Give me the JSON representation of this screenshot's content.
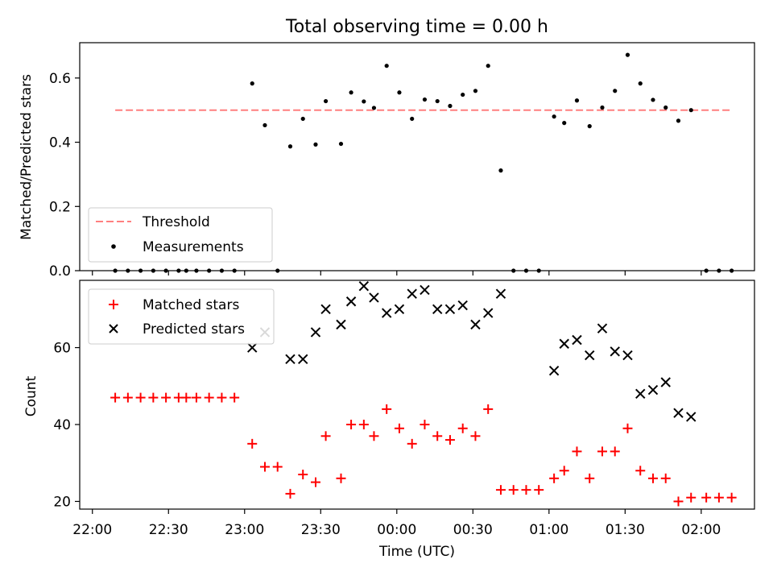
{
  "figure": {
    "title": "Total observing time = 0.00 h",
    "xlabel": "Time (UTC)"
  },
  "chart_data": [
    {
      "type": "scatter",
      "ylabel": "Matched/Predicted stars",
      "ylim": [
        0,
        0.71
      ],
      "yticks": [
        0.0,
        0.2,
        0.4,
        0.6
      ],
      "ytick_labels": [
        "0.0",
        "0.2",
        "0.4",
        "0.6"
      ],
      "threshold": {
        "name": "Threshold",
        "value": 0.5,
        "x_start": "22:09",
        "x_end": "02:12",
        "color": "#ff7f7f"
      },
      "legend_location": "lower-left",
      "series": [
        {
          "name": "Measurements",
          "marker": "dot",
          "color": "#000000",
          "points": [
            [
              "22:09",
              0
            ],
            [
              "22:14",
              0
            ],
            [
              "22:19",
              0
            ],
            [
              "22:24",
              0
            ],
            [
              "22:29",
              0
            ],
            [
              "22:34",
              0
            ],
            [
              "22:37",
              0
            ],
            [
              "22:41",
              0
            ],
            [
              "22:46",
              0
            ],
            [
              "22:51",
              0
            ],
            [
              "22:56",
              0
            ],
            [
              "23:03",
              0.583
            ],
            [
              "23:08",
              0.453
            ],
            [
              "23:13",
              0
            ],
            [
              "23:18",
              0.387
            ],
            [
              "23:23",
              0.473
            ],
            [
              "23:28",
              0.393
            ],
            [
              "23:32",
              0.528
            ],
            [
              "23:38",
              0.395
            ],
            [
              "23:42",
              0.555
            ],
            [
              "23:47",
              0.527
            ],
            [
              "23:51",
              0.507
            ],
            [
              "23:56",
              0.638
            ],
            [
              "00:01",
              0.555
            ],
            [
              "00:06",
              0.473
            ],
            [
              "00:11",
              0.533
            ],
            [
              "00:16",
              0.528
            ],
            [
              "00:21",
              0.513
            ],
            [
              "00:26",
              0.548
            ],
            [
              "00:31",
              0.56
            ],
            [
              "00:36",
              0.638
            ],
            [
              "00:41",
              0.312
            ],
            [
              "00:46",
              0
            ],
            [
              "00:51",
              0
            ],
            [
              "00:56",
              0
            ],
            [
              "01:02",
              0.48
            ],
            [
              "01:06",
              0.46
            ],
            [
              "01:11",
              0.53
            ],
            [
              "01:16",
              0.45
            ],
            [
              "01:21",
              0.508
            ],
            [
              "01:26",
              0.56
            ],
            [
              "01:31",
              0.672
            ],
            [
              "01:36",
              0.583
            ],
            [
              "01:41",
              0.532
            ],
            [
              "01:46",
              0.508
            ],
            [
              "01:51",
              0.467
            ],
            [
              "01:56",
              0.5
            ],
            [
              "02:02",
              0
            ],
            [
              "02:07",
              0
            ],
            [
              "02:12",
              0
            ]
          ]
        }
      ]
    },
    {
      "type": "scatter",
      "ylabel": "Count",
      "ylim": [
        18,
        77.5
      ],
      "yticks": [
        20,
        40,
        60
      ],
      "ytick_labels": [
        "20",
        "40",
        "60"
      ],
      "xticks": [
        "22:00",
        "22:30",
        "23:00",
        "23:30",
        "00:00",
        "00:30",
        "01:00",
        "01:30",
        "02:00"
      ],
      "xlim": [
        "21:55",
        "02:21"
      ],
      "legend_location": "upper-left",
      "series": [
        {
          "name": "Matched stars",
          "marker": "plus",
          "color": "#ff0000",
          "points": [
            [
              "22:09",
              47
            ],
            [
              "22:14",
              47
            ],
            [
              "22:19",
              47
            ],
            [
              "22:24",
              47
            ],
            [
              "22:29",
              47
            ],
            [
              "22:34",
              47
            ],
            [
              "22:37",
              47
            ],
            [
              "22:41",
              47
            ],
            [
              "22:46",
              47
            ],
            [
              "22:51",
              47
            ],
            [
              "22:56",
              47
            ],
            [
              "23:03",
              35
            ],
            [
              "23:08",
              29
            ],
            [
              "23:13",
              29
            ],
            [
              "23:18",
              22
            ],
            [
              "23:23",
              27
            ],
            [
              "23:28",
              25
            ],
            [
              "23:32",
              37
            ],
            [
              "23:38",
              26
            ],
            [
              "23:42",
              40
            ],
            [
              "23:47",
              40
            ],
            [
              "23:51",
              37
            ],
            [
              "23:56",
              44
            ],
            [
              "00:01",
              39
            ],
            [
              "00:06",
              35
            ],
            [
              "00:11",
              40
            ],
            [
              "00:16",
              37
            ],
            [
              "00:21",
              36
            ],
            [
              "00:26",
              39
            ],
            [
              "00:31",
              37
            ],
            [
              "00:36",
              44
            ],
            [
              "00:41",
              23
            ],
            [
              "00:46",
              23
            ],
            [
              "00:51",
              23
            ],
            [
              "00:56",
              23
            ],
            [
              "01:02",
              26
            ],
            [
              "01:06",
              28
            ],
            [
              "01:11",
              33
            ],
            [
              "01:16",
              26
            ],
            [
              "01:21",
              33
            ],
            [
              "01:26",
              33
            ],
            [
              "01:31",
              39
            ],
            [
              "01:36",
              28
            ],
            [
              "01:41",
              26
            ],
            [
              "01:46",
              26
            ],
            [
              "01:51",
              20
            ],
            [
              "01:56",
              21
            ],
            [
              "02:02",
              21
            ],
            [
              "02:07",
              21
            ],
            [
              "02:12",
              21
            ]
          ]
        },
        {
          "name": "Predicted stars",
          "marker": "x",
          "color": "#000000",
          "points": [
            [
              "23:03",
              60
            ],
            [
              "23:08",
              64
            ],
            [
              "23:18",
              57
            ],
            [
              "23:23",
              57
            ],
            [
              "23:28",
              64
            ],
            [
              "23:32",
              70
            ],
            [
              "23:38",
              66
            ],
            [
              "23:42",
              72
            ],
            [
              "23:47",
              76
            ],
            [
              "23:51",
              73
            ],
            [
              "23:56",
              69
            ],
            [
              "00:01",
              70
            ],
            [
              "00:06",
              74
            ],
            [
              "00:11",
              75
            ],
            [
              "00:16",
              70
            ],
            [
              "00:21",
              70
            ],
            [
              "00:26",
              71
            ],
            [
              "00:31",
              66
            ],
            [
              "00:36",
              69
            ],
            [
              "00:41",
              74
            ],
            [
              "01:02",
              54
            ],
            [
              "01:06",
              61
            ],
            [
              "01:11",
              62
            ],
            [
              "01:16",
              58
            ],
            [
              "01:21",
              65
            ],
            [
              "01:26",
              59
            ],
            [
              "01:31",
              58
            ],
            [
              "01:36",
              48
            ],
            [
              "01:41",
              49
            ],
            [
              "01:46",
              51
            ],
            [
              "01:51",
              43
            ],
            [
              "01:56",
              42
            ]
          ]
        }
      ]
    }
  ]
}
